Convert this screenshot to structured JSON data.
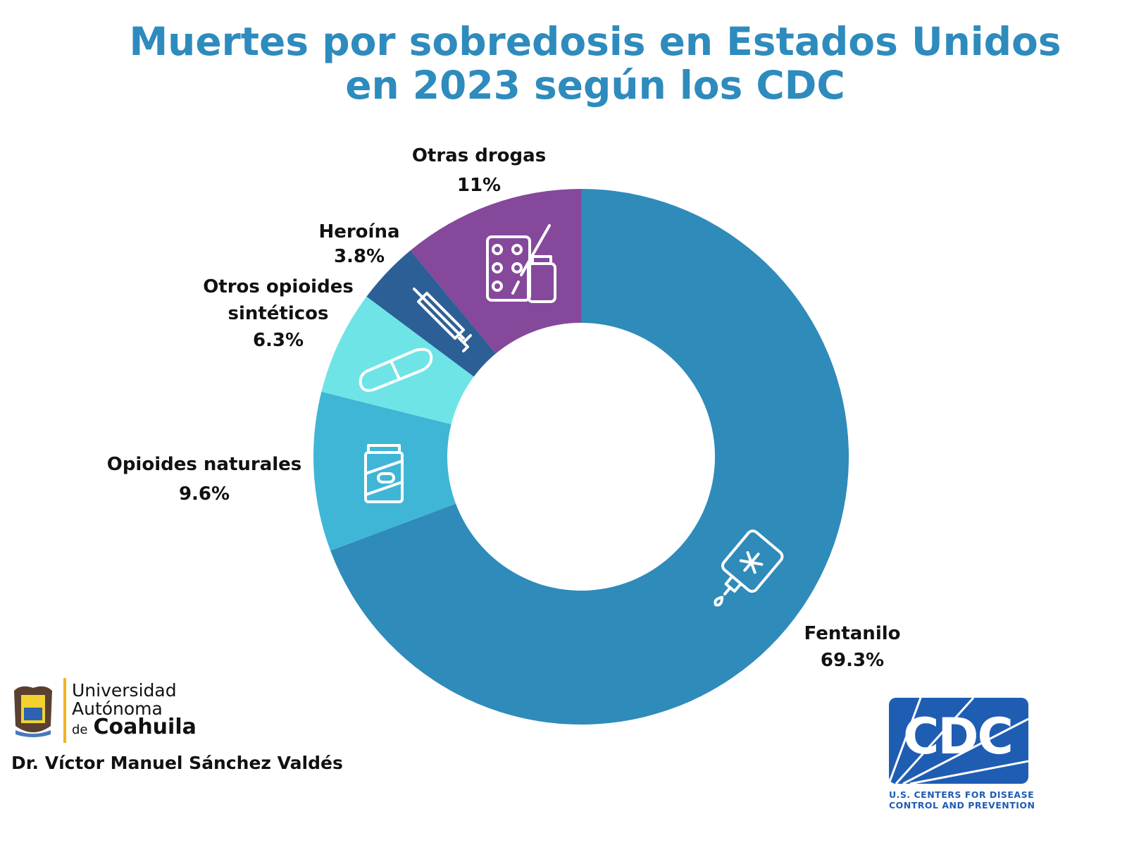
{
  "chart_data": {
    "type": "pie",
    "donut": true,
    "title": "Muertes por sobredosis en Estados Unidos en 2023 según los CDC",
    "categories": [
      "Fentanilo",
      "Opioides naturales",
      "Otros opioides sintéticos",
      "Heroína",
      "Otras drogas"
    ],
    "values": [
      69.3,
      9.6,
      6.3,
      3.8,
      11
    ],
    "value_labels": [
      "69.3%",
      "9.6%",
      "6.3%",
      "3.8%",
      "11%"
    ],
    "colors": [
      "#2e8bba",
      "#40b6d6",
      "#6ee4e6",
      "#2c5f96",
      "#85489b"
    ],
    "icons": [
      "iv-bag-icon",
      "pill-bottle-icon",
      "pill-icon",
      "syringe-icon",
      "drugs-icon"
    ],
    "start_angle": "top",
    "direction": "clockwise"
  },
  "title_line1": "Muertes por sobredosis en Estados Unidos",
  "title_line2": "en 2023 según los CDC",
  "labels": {
    "fentanilo": {
      "name": "Fentanilo",
      "value": "69.3%"
    },
    "naturales": {
      "name": "Opioides naturales",
      "value": "9.6%"
    },
    "sinteticos": {
      "name1": "Otros opioides",
      "name2": "sintéticos",
      "value": "6.3%"
    },
    "heroina": {
      "name": "Heroína",
      "value": "3.8%"
    },
    "otras": {
      "name": "Otras drogas",
      "value": "11%"
    }
  },
  "footer": {
    "university_line1": "Universidad",
    "university_line2": "Autónoma",
    "university_de": "de",
    "university_line3": "Coahuila",
    "author": "Dr. Víctor Manuel Sánchez Valdés",
    "cdc_logo": "CDC",
    "cdc_line1": "U.S. CENTERS FOR DISEASE",
    "cdc_line2": "CONTROL AND PREVENTION"
  }
}
